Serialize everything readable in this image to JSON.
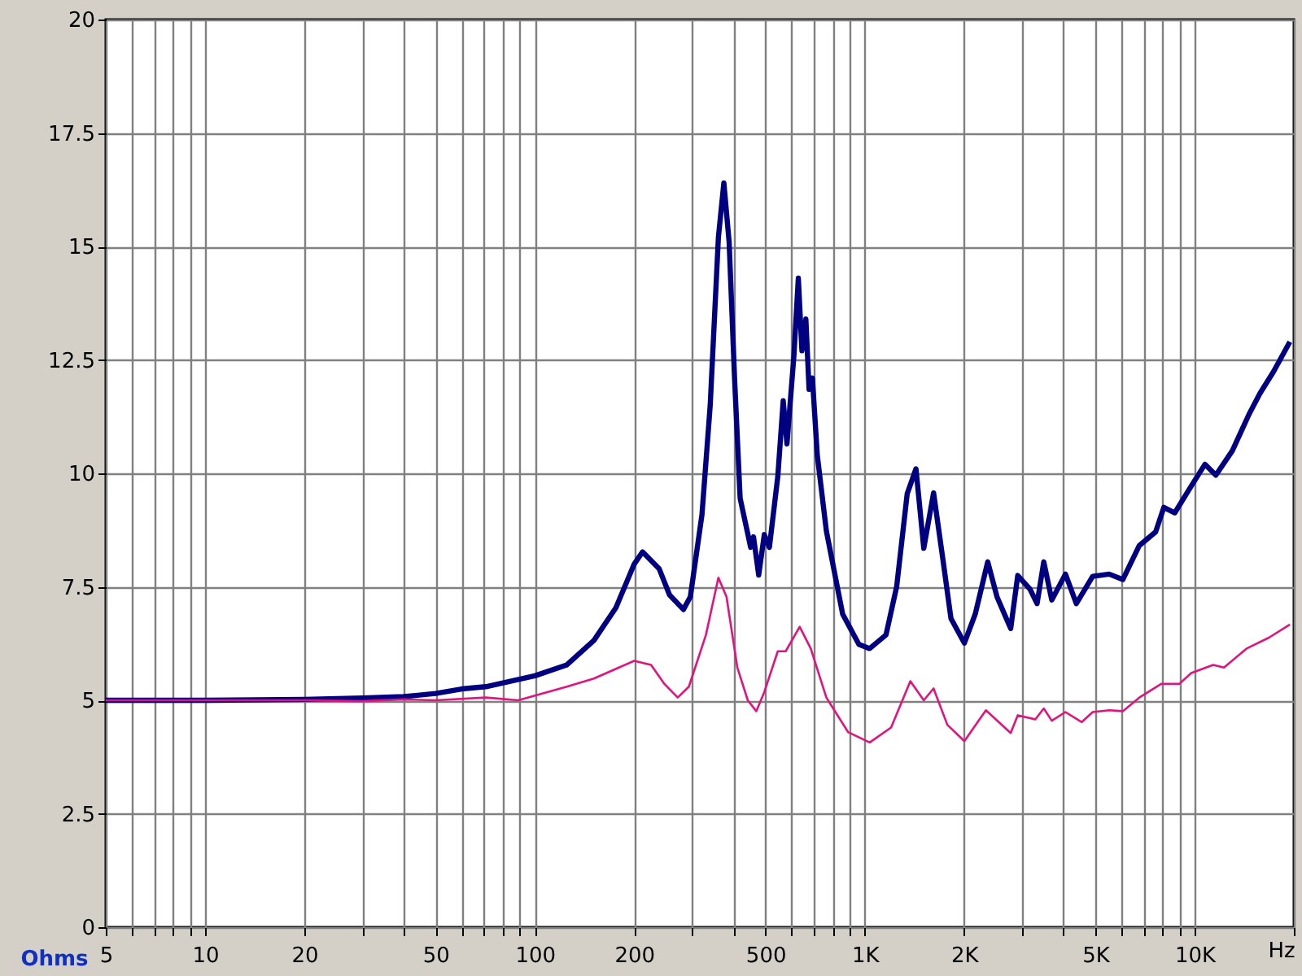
{
  "chart_data": {
    "type": "line",
    "xlabel": "Hz",
    "ylabel": "Ohms",
    "log": "x",
    "grid": true,
    "xlim": [
      5,
      20000
    ],
    "ylim": [
      0,
      20
    ],
    "xticks": [
      5,
      {
        "value": 6,
        "label": null
      },
      {
        "value": 7,
        "label": null
      },
      {
        "value": 8,
        "label": null
      },
      {
        "value": 9,
        "label": null
      },
      10,
      20,
      {
        "value": 30,
        "label": null
      },
      {
        "value": 40,
        "label": null
      },
      50,
      {
        "value": 60,
        "label": null
      },
      {
        "value": 70,
        "label": null
      },
      {
        "value": 80,
        "label": null
      },
      {
        "value": 90,
        "label": null
      },
      100,
      200,
      {
        "value": 300,
        "label": null
      },
      {
        "value": 400,
        "label": null
      },
      500,
      {
        "value": 600,
        "label": null
      },
      {
        "value": 700,
        "label": null
      },
      {
        "value": 800,
        "label": null
      },
      {
        "value": 900,
        "label": null
      },
      {
        "value": 1000,
        "label": "1K"
      },
      {
        "value": 2000,
        "label": "2K"
      },
      {
        "value": 3000,
        "label": null
      },
      {
        "value": 4000,
        "label": null
      },
      {
        "value": 5000,
        "label": "5K"
      },
      {
        "value": 6000,
        "label": null
      },
      {
        "value": 7000,
        "label": null
      },
      {
        "value": 8000,
        "label": null
      },
      {
        "value": 9000,
        "label": null
      },
      {
        "value": 10000,
        "label": "10K"
      },
      {
        "value": 20000,
        "label": null
      }
    ],
    "yticks": [
      0,
      2.5,
      5,
      7.5,
      10,
      12.5,
      15,
      17.5,
      20
    ],
    "series": [
      {
        "color": "#000080",
        "x": [
          5,
          10,
          20,
          30,
          40,
          50,
          60,
          71,
          100,
          125,
          151,
          176,
          200,
          212,
          238,
          256,
          282,
          296,
          321,
          340,
          360,
          374,
          388,
          403,
          419,
          451,
          460,
          477,
          496,
          514,
          545,
          566,
          581,
          610,
          629,
          645,
          663,
          678,
          694,
          718,
          765,
          857,
          960,
          1035,
          1160,
          1250,
          1345,
          1430,
          1510,
          1617,
          1726,
          1826,
          2005,
          2163,
          2360,
          2520,
          2770,
          2910,
          3170,
          3330,
          3490,
          3690,
          4060,
          4380,
          4910,
          5510,
          6060,
          6800,
          7620,
          8070,
          8710,
          9770,
          10750,
          11600,
          13020,
          14620,
          15780,
          17350,
          19450
        ],
        "values": [
          5.0,
          5.0,
          5.02,
          5.05,
          5.08,
          5.15,
          5.25,
          5.3,
          5.54,
          5.78,
          6.32,
          7.04,
          8.0,
          8.27,
          7.9,
          7.32,
          7.0,
          7.28,
          9.09,
          11.5,
          15.2,
          16.4,
          15.1,
          12.1,
          9.45,
          8.37,
          8.6,
          7.76,
          8.65,
          8.37,
          9.93,
          11.6,
          10.65,
          12.6,
          14.3,
          12.7,
          13.4,
          11.85,
          12.1,
          10.4,
          8.73,
          6.9,
          6.23,
          6.14,
          6.44,
          7.51,
          9.55,
          10.1,
          8.35,
          9.57,
          8.1,
          6.8,
          6.26,
          6.9,
          8.05,
          7.27,
          6.58,
          7.75,
          7.45,
          7.13,
          8.05,
          7.21,
          7.78,
          7.13,
          7.73,
          7.78,
          7.66,
          8.41,
          8.71,
          9.25,
          9.13,
          9.72,
          10.2,
          9.96,
          10.5,
          11.3,
          11.76,
          12.24,
          12.9
        ]
      },
      {
        "color": "#e0147c",
        "x": [
          5,
          20,
          30,
          40,
          50,
          71,
          89,
          125,
          151,
          200,
          225,
          247,
          271,
          293,
          330,
          360,
          381,
          411,
          442,
          469,
          496,
          545,
          576,
          635,
          686,
          765,
          890,
          1035,
          1202,
          1375,
          1510,
          1617,
          1780,
          2005,
          2200,
          2330,
          2770,
          2910,
          3290,
          3490,
          3690,
          4060,
          4550,
          4910,
          5510,
          6060,
          6800,
          7920,
          8990,
          9770,
          11390,
          12280,
          14380,
          16800,
          19450
        ],
        "values": [
          5.0,
          5.0,
          4.98,
          5.02,
          5.0,
          5.06,
          5.0,
          5.3,
          5.48,
          5.87,
          5.78,
          5.36,
          5.06,
          5.3,
          6.44,
          7.7,
          7.28,
          5.72,
          5.0,
          4.76,
          5.18,
          6.08,
          6.08,
          6.62,
          6.14,
          5.06,
          4.3,
          4.07,
          4.4,
          5.42,
          5.0,
          5.26,
          4.46,
          4.1,
          4.52,
          4.78,
          4.28,
          4.67,
          4.58,
          4.82,
          4.55,
          4.74,
          4.52,
          4.74,
          4.78,
          4.76,
          5.06,
          5.36,
          5.36,
          5.6,
          5.78,
          5.72,
          6.14,
          6.38,
          6.67
        ]
      }
    ]
  }
}
